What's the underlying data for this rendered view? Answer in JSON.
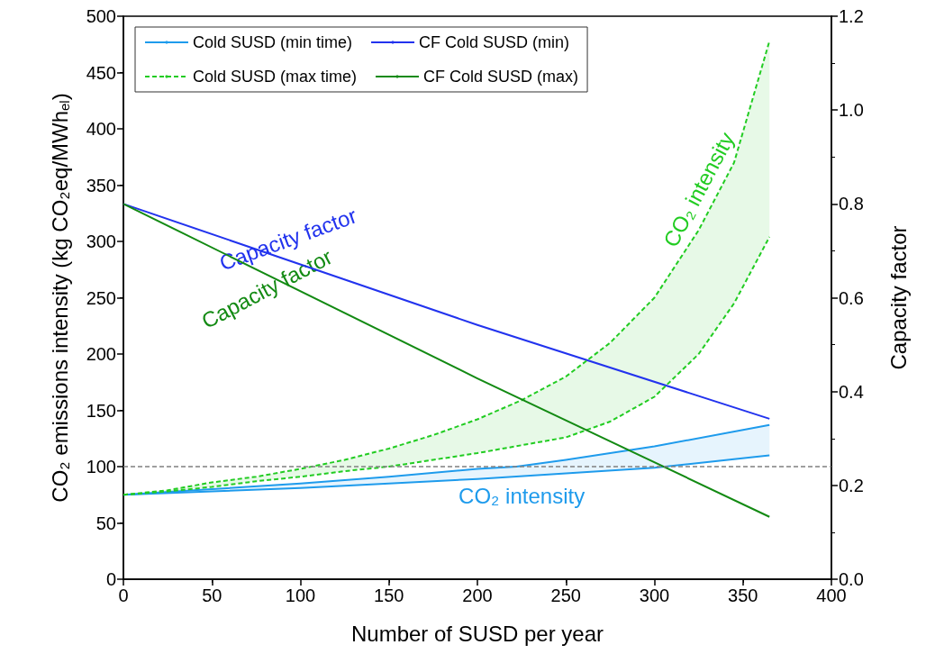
{
  "chart_data": {
    "type": "line",
    "xlabel": "Number of SUSD per year",
    "ylabel": "CO₂ emissions intensity (kg CO₂eq/MWh$_{el}$)",
    "y2label": "Capacity factor",
    "xlim": [
      0,
      400
    ],
    "xticks": [
      0,
      50,
      100,
      150,
      200,
      250,
      300,
      350,
      400
    ],
    "ylim": [
      0,
      500
    ],
    "yticks": [
      0,
      50,
      100,
      150,
      200,
      250,
      300,
      350,
      400,
      450,
      500
    ],
    "y2lim": [
      0,
      1.2
    ],
    "y2ticks": [
      {
        "value": 0,
        "label": "0.0"
      },
      {
        "value": 0.2,
        "label": "0.2"
      },
      {
        "value": 0.4,
        "label": "0.4"
      },
      {
        "value": 0.6,
        "label": "0.6"
      },
      {
        "value": 0.8,
        "label": "0.8"
      },
      {
        "value": 1.0,
        "label": "1.0"
      },
      {
        "value": 1.2,
        "label": "1.2"
      }
    ],
    "grid": false,
    "legend": "top left",
    "marker": "none",
    "series": [
      {
        "name": "Cold SUSD (min time)",
        "color": "#1e9bec",
        "line_style": "solid",
        "x": [
          0,
          50,
          100,
          150,
          200,
          222,
          250,
          300,
          365
        ],
        "values": [
          75,
          80,
          85,
          91,
          98,
          100,
          106,
          118,
          137
        ],
        "upper": [
          75,
          80,
          85,
          91,
          98,
          100,
          106,
          118,
          137
        ],
        "lower": [
          75,
          78,
          81,
          85,
          89,
          91,
          94,
          99,
          110
        ]
      },
      {
        "color": "#1e9bec",
        "line_style": "solid",
        "x": [
          0,
          50,
          100,
          150,
          200,
          250,
          300,
          365
        ],
        "values": [
          75,
          78,
          81,
          85,
          89,
          94,
          99,
          110
        ]
      },
      {
        "name": "CF Cold SUSD (min)",
        "color": "#2233ee",
        "line_style": "solid",
        "axis": "y2",
        "x": [
          0,
          200,
          365
        ],
        "values": [
          0.8,
          0.542,
          0.342
        ]
      },
      {
        "name": "Cold SUSD (max time)",
        "color": "#22cc22",
        "line_style": "dashed",
        "x": [
          0,
          25,
          50,
          75,
          100,
          125,
          150,
          175,
          200,
          225,
          250,
          275,
          300,
          325,
          345,
          365
        ],
        "values": [
          75,
          79,
          86,
          91,
          98,
          106,
          116,
          128,
          142,
          159,
          180,
          210,
          250,
          310,
          370,
          478
        ],
        "upper": [
          75,
          79,
          86,
          91,
          98,
          106,
          116,
          128,
          142,
          159,
          180,
          210,
          250,
          310,
          370,
          478
        ],
        "lower": [
          75,
          78,
          82,
          87,
          91,
          96,
          100,
          106,
          112,
          119,
          126,
          140,
          162,
          200,
          245,
          304
        ]
      },
      {
        "color": "#22cc22",
        "line_style": "dashed",
        "x": [
          0,
          25,
          50,
          75,
          100,
          125,
          150,
          175,
          200,
          225,
          250,
          275,
          300,
          325,
          345,
          365
        ],
        "values": [
          75,
          78,
          82,
          87,
          91,
          96,
          100,
          106,
          112,
          119,
          126,
          140,
          162,
          200,
          245,
          304
        ]
      },
      {
        "name": "CF Cold SUSD (max)",
        "color": "#138a13",
        "line_style": "solid",
        "axis": "y2",
        "x": [
          0,
          200,
          365
        ],
        "values": [
          0.8,
          0.428,
          0.133
        ]
      }
    ],
    "ref_lines": [
      {
        "axis": "y",
        "value": 100,
        "color": "#808080",
        "line_style": "dashed"
      }
    ],
    "annotations": [
      "Capacity factor",
      "Capacity factor",
      "CO₂ intensity",
      "CO₂ intensity"
    ]
  }
}
